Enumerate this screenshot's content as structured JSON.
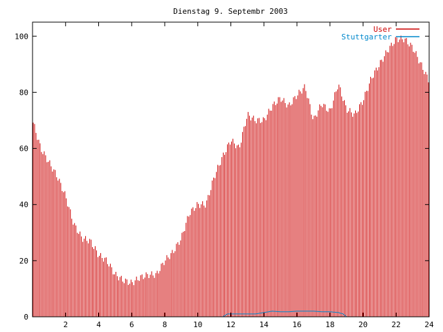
{
  "chart_data": {
    "type": "bar",
    "title": "Dienstag 9. Septembr 2003",
    "xlabel": "",
    "ylabel": "",
    "xlim": [
      0,
      24
    ],
    "ylim": [
      0,
      105
    ],
    "xticks": [
      "2",
      "4",
      "6",
      "8",
      "10",
      "12",
      "14",
      "16",
      "18",
      "20",
      "22",
      "24"
    ],
    "yticks": [
      "0",
      "20",
      "40",
      "60",
      "80",
      "100"
    ],
    "grid": false,
    "legend_position": "top-right",
    "series": [
      {
        "name": "User",
        "color": "#cc0000",
        "x": [
          0.0,
          0.5,
          1.0,
          1.5,
          2.0,
          2.5,
          3.0,
          3.5,
          4.0,
          4.5,
          5.0,
          5.5,
          6.0,
          6.5,
          7.0,
          7.5,
          8.0,
          8.5,
          9.0,
          9.5,
          10.0,
          10.5,
          11.0,
          11.5,
          12.0,
          12.5,
          13.0,
          13.5,
          14.0,
          14.5,
          15.0,
          15.5,
          16.0,
          16.5,
          17.0,
          17.5,
          18.0,
          18.5,
          19.0,
          19.5,
          20.0,
          20.5,
          21.0,
          21.5,
          22.0,
          22.5,
          23.0,
          23.5,
          24.0
        ],
        "values": [
          70,
          60,
          55,
          50,
          43,
          33,
          28,
          27,
          22,
          20,
          15,
          13,
          12,
          14,
          15,
          15,
          20,
          23,
          28,
          37,
          40,
          40,
          50,
          57,
          63,
          60,
          72,
          70,
          70,
          75,
          78,
          75,
          79,
          82,
          70,
          76,
          73,
          83,
          74,
          72,
          77,
          85,
          90,
          95,
          99,
          99,
          96,
          90,
          84
        ]
      },
      {
        "name": "Stuttgarter",
        "color": "#0088cc",
        "x": [
          0.0,
          11.5,
          11.8,
          12.5,
          13.0,
          13.5,
          14.0,
          14.5,
          15.0,
          15.5,
          16.0,
          16.5,
          17.0,
          17.5,
          18.0,
          18.5,
          18.8,
          19.0,
          24.0
        ],
        "values": [
          0,
          0,
          1,
          1,
          1,
          1,
          1.5,
          2,
          1.8,
          1.8,
          2,
          2,
          2,
          1.8,
          1.8,
          1.5,
          1,
          0,
          0
        ]
      }
    ]
  }
}
